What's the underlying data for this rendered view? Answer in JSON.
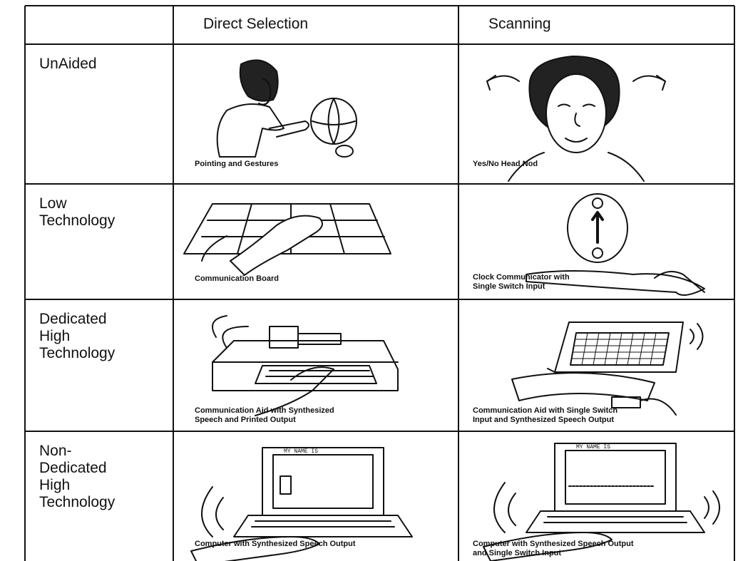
{
  "table": {
    "columns": [
      "Direct Selection",
      "Scanning"
    ],
    "rows": [
      {
        "label": "UnAided",
        "direct": "Pointing and Gestures",
        "scanning": "Yes/No Head Nod"
      },
      {
        "label": "Low\nTechnology",
        "direct": "Communication Board",
        "scanning": "Clock Communicator with\nSingle Switch Input"
      },
      {
        "label": "Dedicated\nHigh\nTechnology",
        "direct": "Communication Aid with Synthesized\nSpeech and Printed Output",
        "scanning": "Communication Aid with Single Switch\nInput and Synthesized Speech Output"
      },
      {
        "label": "Non-\nDedicated\nHigh\nTechnology",
        "direct": "Computer with Synthesized Speech Output",
        "scanning": "Computer with Synthesized Speech Output\nand Single Switch Input"
      }
    ],
    "screen_text": "MY NAME IS"
  }
}
